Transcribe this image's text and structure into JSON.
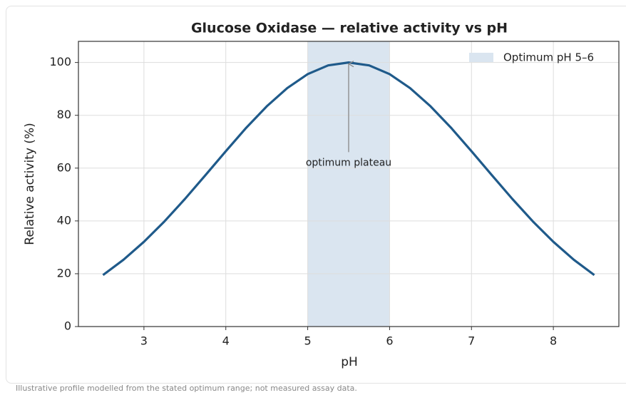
{
  "chart_data": {
    "type": "line",
    "title": "Glucose Oxidase — relative activity vs pH",
    "xlabel": "pH",
    "ylabel": "Relative activity (%)",
    "x": [
      2.5,
      2.75,
      3,
      3.25,
      3.5,
      3.75,
      4,
      4.25,
      4.5,
      4.75,
      5,
      5.25,
      5.5,
      5.75,
      6,
      6.25,
      6.5,
      6.75,
      7,
      7.25,
      7.5,
      7.75,
      8,
      8.25,
      8.5
    ],
    "series": [
      {
        "name": "Relative activity",
        "color": "#1f5a8a",
        "values": [
          19.5,
          25.3,
          32.1,
          39.8,
          48.3,
          57.3,
          66.4,
          75.3,
          83.4,
          90.3,
          95.6,
          98.9,
          100,
          98.9,
          95.6,
          90.3,
          83.4,
          75.3,
          66.4,
          57.3,
          48.3,
          39.8,
          32.1,
          25.3,
          19.5
        ]
      }
    ],
    "band": {
      "name": "Optimum pH 5–6",
      "range": [
        5,
        6
      ],
      "color": "#dae5f0"
    },
    "annotation": {
      "text": "optimum plateau",
      "x": 5.5,
      "y": 100,
      "text_y": 62
    },
    "xlim": [
      2.2,
      8.8
    ],
    "ylim": [
      0,
      108
    ],
    "xticks": [
      3,
      4,
      5,
      6,
      7,
      8
    ],
    "yticks": [
      0,
      20,
      40,
      60,
      80,
      100
    ],
    "grid": true,
    "legend": "upper right",
    "footnote": "Illustrative profile modelled from the stated optimum range; not measured assay data."
  }
}
